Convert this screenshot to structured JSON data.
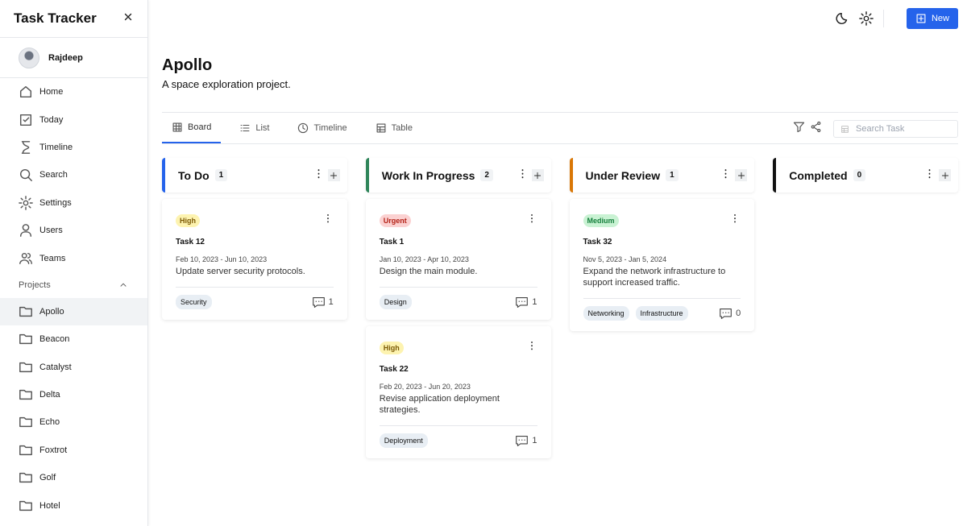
{
  "app": {
    "title": "Task Tracker",
    "user": "Rajdeep",
    "new_button": "New"
  },
  "nav": [
    "Home",
    "Today",
    "Timeline",
    "Search",
    "Settings",
    "Users",
    "Teams"
  ],
  "projects_label": "Projects",
  "projects": [
    "Apollo",
    "Beacon",
    "Catalyst",
    "Delta",
    "Echo",
    "Foxtrot",
    "Golf",
    "Hotel"
  ],
  "project": {
    "name": "Apollo",
    "description": "A space exploration project."
  },
  "tabs": [
    "Board",
    "List",
    "Timeline",
    "Table"
  ],
  "search_placeholder": "Search Task",
  "columns": [
    {
      "name": "To Do",
      "count": 1,
      "color": "#2563eb",
      "tasks": [
        {
          "priority": "High",
          "title": "Task 12",
          "dates": "Feb 10, 2023 - Jun 10, 2023",
          "description": "Update server security protocols.",
          "tags": [
            "Security"
          ],
          "comments": 1
        }
      ]
    },
    {
      "name": "Work In Progress",
      "count": 2,
      "color": "#2f855a",
      "tasks": [
        {
          "priority": "Urgent",
          "title": "Task 1",
          "dates": "Jan 10, 2023 - Apr 10, 2023",
          "description": "Design the main module.",
          "tags": [
            "Design"
          ],
          "comments": 1
        },
        {
          "priority": "High",
          "title": "Task 22",
          "dates": "Feb 20, 2023 - Jun 20, 2023",
          "description": "Revise application deployment strategies.",
          "tags": [
            "Deployment"
          ],
          "comments": 1
        }
      ]
    },
    {
      "name": "Under Review",
      "count": 1,
      "color": "#d97706",
      "tasks": [
        {
          "priority": "Medium",
          "title": "Task 32",
          "dates": "Nov 5, 2023 - Jan 5, 2024",
          "description": "Expand the network infrastructure to support increased traffic.",
          "tags": [
            "Networking",
            "Infrastructure"
          ],
          "comments": 0
        }
      ]
    },
    {
      "name": "Completed",
      "count": 0,
      "color": "#111111",
      "tasks": []
    }
  ]
}
